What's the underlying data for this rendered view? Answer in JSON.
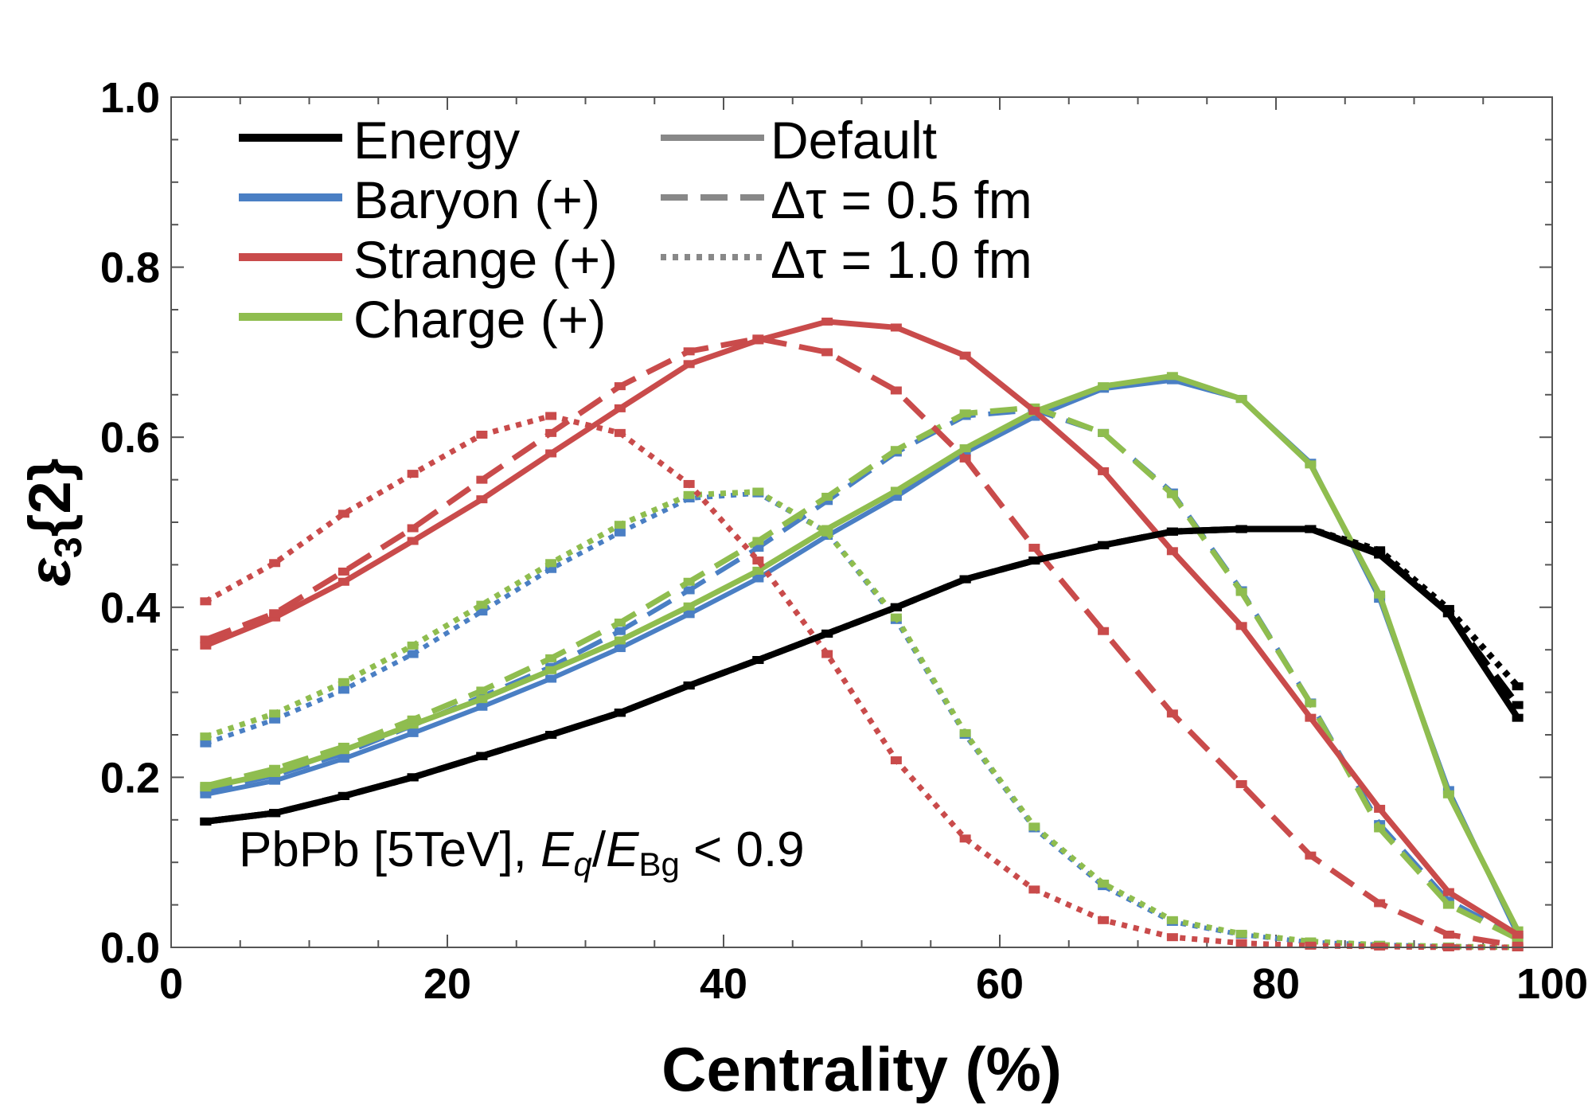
{
  "chart_data": {
    "type": "line",
    "xlabel": "Centrality (%)",
    "ylabel": {
      "symbol": "ε",
      "subscript": "3",
      "suffix": "{2}"
    },
    "xlim": [
      0,
      100
    ],
    "ylim": [
      0,
      1.0
    ],
    "xticks": [
      "0",
      "20",
      "40",
      "60",
      "80",
      "100"
    ],
    "yticks": [
      "0.0",
      "0.2",
      "0.4",
      "0.6",
      "0.8",
      "1.0"
    ],
    "grid": false,
    "legend_position": "top-left",
    "annotation": {
      "system": "PbPb [5TeV], ",
      "e": "E",
      "q": "q",
      "slash": "/",
      "bg": "Bg",
      "cut": " < 0.9"
    },
    "colors": {
      "Energy": "#000000",
      "Baryon (+)": "#4a7fc4",
      "Strange (+)": "#c94b4b",
      "Charge (+)": "#8fbd4f",
      "legend_gray": "#888888"
    },
    "legend": {
      "species": [
        "Energy",
        "Baryon (+)",
        "Strange (+)",
        "Charge (+)"
      ],
      "styles": [
        "Default",
        "Δτ = 0.5 fm",
        "Δτ = 1.0 fm"
      ]
    },
    "x": [
      2.5,
      7.5,
      12.5,
      17.5,
      22.5,
      27.5,
      32.5,
      37.5,
      42.5,
      47.5,
      52.5,
      57.5,
      62.5,
      67.5,
      72.5,
      77.5,
      82.5,
      87.5,
      92.5,
      97.5
    ],
    "series": [
      {
        "name": "Energy",
        "style": "Default",
        "values": [
          0.148,
          0.158,
          0.178,
          0.2,
          0.225,
          0.25,
          0.276,
          0.308,
          0.338,
          0.369,
          0.4,
          0.433,
          0.455,
          0.473,
          0.489,
          0.492,
          0.492,
          0.462,
          0.393,
          0.27
        ]
      },
      {
        "name": "Energy",
        "style": "Δτ = 0.5 fm",
        "values": [
          0.148,
          0.158,
          0.178,
          0.2,
          0.225,
          0.25,
          0.276,
          0.308,
          0.338,
          0.369,
          0.4,
          0.433,
          0.455,
          0.473,
          0.489,
          0.492,
          0.492,
          0.464,
          0.393,
          0.285
        ]
      },
      {
        "name": "Energy",
        "style": "Δτ = 1.0 fm",
        "values": [
          0.148,
          0.158,
          0.178,
          0.2,
          0.225,
          0.25,
          0.276,
          0.308,
          0.338,
          0.369,
          0.4,
          0.433,
          0.455,
          0.473,
          0.489,
          0.492,
          0.492,
          0.467,
          0.398,
          0.307
        ]
      },
      {
        "name": "Baryon (+)",
        "style": "Default",
        "values": [
          0.18,
          0.196,
          0.222,
          0.252,
          0.283,
          0.316,
          0.352,
          0.392,
          0.434,
          0.484,
          0.53,
          0.582,
          0.624,
          0.657,
          0.667,
          0.645,
          0.57,
          0.41,
          0.185,
          0.015
        ]
      },
      {
        "name": "Baryon (+)",
        "style": "Δτ = 0.5 fm",
        "values": [
          0.185,
          0.202,
          0.228,
          0.261,
          0.295,
          0.33,
          0.372,
          0.42,
          0.47,
          0.525,
          0.582,
          0.625,
          0.632,
          0.605,
          0.535,
          0.42,
          0.288,
          0.145,
          0.055,
          0.012
        ]
      },
      {
        "name": "Baryon (+)",
        "style": "Δτ = 1.0 fm",
        "values": [
          0.24,
          0.268,
          0.303,
          0.345,
          0.395,
          0.445,
          0.488,
          0.528,
          0.534,
          0.488,
          0.385,
          0.25,
          0.14,
          0.072,
          0.03,
          0.015,
          0.006,
          0.003,
          0.001,
          0.0
        ]
      },
      {
        "name": "Strange (+)",
        "style": "Default",
        "values": [
          0.355,
          0.388,
          0.43,
          0.478,
          0.527,
          0.581,
          0.634,
          0.686,
          0.714,
          0.736,
          0.729,
          0.696,
          0.631,
          0.56,
          0.466,
          0.378,
          0.27,
          0.163,
          0.065,
          0.015
        ]
      },
      {
        "name": "Strange (+)",
        "style": "Δτ = 0.5 fm",
        "values": [
          0.362,
          0.393,
          0.442,
          0.493,
          0.55,
          0.605,
          0.66,
          0.701,
          0.716,
          0.7,
          0.655,
          0.575,
          0.47,
          0.372,
          0.275,
          0.192,
          0.108,
          0.052,
          0.015,
          0.002
        ]
      },
      {
        "name": "Strange (+)",
        "style": "Δτ = 1.0 fm",
        "values": [
          0.407,
          0.452,
          0.51,
          0.557,
          0.603,
          0.625,
          0.605,
          0.545,
          0.455,
          0.345,
          0.22,
          0.128,
          0.068,
          0.032,
          0.012,
          0.005,
          0.002,
          0.001,
          0.0,
          0.0
        ]
      },
      {
        "name": "Charge (+)",
        "style": "Default",
        "values": [
          0.188,
          0.205,
          0.232,
          0.262,
          0.292,
          0.326,
          0.361,
          0.401,
          0.443,
          0.492,
          0.537,
          0.587,
          0.63,
          0.66,
          0.672,
          0.645,
          0.568,
          0.415,
          0.18,
          0.02
        ]
      },
      {
        "name": "Charge (+)",
        "style": "Δτ = 0.5 fm",
        "values": [
          0.19,
          0.21,
          0.236,
          0.268,
          0.302,
          0.34,
          0.382,
          0.43,
          0.478,
          0.53,
          0.585,
          0.628,
          0.635,
          0.605,
          0.533,
          0.418,
          0.287,
          0.14,
          0.05,
          0.01
        ]
      },
      {
        "name": "Charge (+)",
        "style": "Δτ = 1.0 fm",
        "values": [
          0.248,
          0.275,
          0.312,
          0.355,
          0.403,
          0.452,
          0.497,
          0.532,
          0.536,
          0.488,
          0.388,
          0.252,
          0.142,
          0.075,
          0.032,
          0.016,
          0.007,
          0.003,
          0.001,
          0.0
        ]
      }
    ]
  }
}
